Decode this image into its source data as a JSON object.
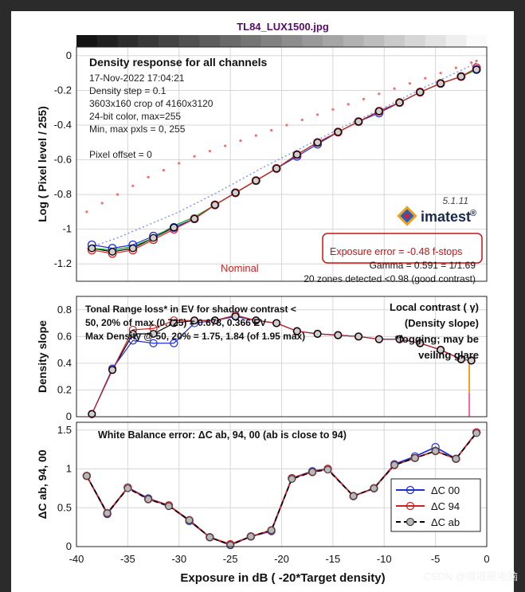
{
  "figure": {
    "title": "TL84_LUX1500.jpg",
    "xlabel": "Exposure in dB ( -20*Target density)",
    "watermark": "CSDN @哐哐砸电脑"
  },
  "chart_data": [
    {
      "type": "line",
      "panel": "density-response",
      "ylabel": "Log ( Pixel level / 255)",
      "xlim": [
        -40,
        0
      ],
      "ylim": [
        -1.3,
        0.05
      ],
      "yticks": [
        0,
        -0.2,
        -0.4,
        -0.6,
        -0.8,
        -1,
        -1.2
      ],
      "ytick_labels": [
        "0",
        "-0.2",
        "-0.4",
        "-0.6",
        "-0.8",
        "-1",
        "-1.2"
      ],
      "info_title": "Density response for all channels",
      "info_lines": [
        "17-Nov-2022 17:04:21",
        "Density step = 0.1",
        "3603x160 crop of 4160x3120",
        "24-bit color, max=255",
        "Min, max pxls = 0, 255",
        "",
        "Pixel offset = 0"
      ],
      "version": "5.1.11",
      "brand": "imatest",
      "brand_mark": "®",
      "nominal_label": "Nominal",
      "exposure_error": "Exposure error = -0.48 f-stops",
      "gamma": "Gamma = 0.591 = 1/1.69",
      "zones": "20 zones detected <0.98 (good contrast)",
      "x": [
        -38.5,
        -36.5,
        -34.5,
        -32.5,
        -30.5,
        -28.5,
        -26.5,
        -24.5,
        -22.5,
        -20.5,
        -18.5,
        -16.5,
        -14.5,
        -12.5,
        -10.5,
        -8.5,
        -6.5,
        -4.5,
        -2.5,
        -1.0
      ],
      "series": [
        {
          "name": "gray",
          "color": "#000000",
          "values": [
            -1.11,
            -1.13,
            -1.11,
            -1.05,
            -0.99,
            -0.94,
            -0.86,
            -0.79,
            -0.72,
            -0.65,
            -0.57,
            -0.5,
            -0.44,
            -0.38,
            -0.32,
            -0.27,
            -0.21,
            -0.16,
            -0.12,
            -0.08
          ]
        },
        {
          "name": "blue",
          "color": "#2030d0",
          "values": [
            -1.09,
            -1.11,
            -1.09,
            -1.04,
            -0.99,
            -0.94,
            -0.86,
            -0.79,
            -0.72,
            -0.65,
            -0.58,
            -0.51,
            -0.44,
            -0.38,
            -0.33,
            -0.27,
            -0.21,
            -0.16,
            -0.12,
            -0.08
          ]
        },
        {
          "name": "green",
          "color": "#10a010",
          "values": [
            -1.11,
            -1.12,
            -1.1,
            -1.05,
            -0.98,
            -0.93,
            -0.86,
            -0.79,
            -0.72,
            -0.65,
            -0.57,
            -0.5,
            -0.44,
            -0.38,
            -0.32,
            -0.27,
            -0.21,
            -0.16,
            -0.12,
            -0.08
          ]
        },
        {
          "name": "red",
          "color": "#d02020",
          "values": [
            -1.12,
            -1.14,
            -1.12,
            -1.06,
            -1.0,
            -0.94,
            -0.86,
            -0.79,
            -0.72,
            -0.65,
            -0.57,
            -0.5,
            -0.44,
            -0.38,
            -0.32,
            -0.27,
            -0.21,
            -0.16,
            -0.12,
            -0.07
          ]
        }
      ],
      "nominal_points": {
        "x": [
          -39.0,
          -37.5,
          -36.0,
          -34.5,
          -33.0,
          -31.5,
          -30.0,
          -28.5,
          -27.0,
          -25.5,
          -24.0,
          -22.5,
          -21.0,
          -19.5,
          -18.0,
          -16.5,
          -15.0,
          -13.5,
          -12.0,
          -10.5,
          -9.0,
          -7.5,
          -6.0,
          -4.5,
          -3.0,
          -1.5,
          -1.0
        ],
        "y": [
          -0.9,
          -0.85,
          -0.8,
          -0.75,
          -0.7,
          -0.66,
          -0.62,
          -0.58,
          -0.55,
          -0.52,
          -0.49,
          -0.46,
          -0.43,
          -0.4,
          -0.37,
          -0.34,
          -0.31,
          -0.28,
          -0.25,
          -0.22,
          -0.19,
          -0.16,
          -0.13,
          -0.1,
          -0.07,
          -0.04,
          -0.03
        ]
      },
      "ideal_line": {
        "x": [
          -39,
          -36,
          -34,
          -30,
          -26,
          -22,
          -18,
          -14,
          -10,
          -6,
          -2,
          -1
        ],
        "y": [
          -1.11,
          -1.05,
          -1.0,
          -0.9,
          -0.78,
          -0.65,
          -0.53,
          -0.41,
          -0.3,
          -0.18,
          -0.07,
          -0.04
        ]
      }
    },
    {
      "type": "line",
      "panel": "density-slope",
      "ylabel": "Density slope",
      "xlim": [
        -40,
        0
      ],
      "ylim": [
        0,
        0.9
      ],
      "yticks": [
        0,
        0.2,
        0.4,
        0.6,
        0.8
      ],
      "ytick_labels": [
        "0",
        "0.2",
        "0.4",
        "0.6",
        "0.8"
      ],
      "annot_lines": [
        "Tonal Range loss* in EV for shadow contrast <",
        "50, 20% of max (0.725) = 0.678, 0.366 EV",
        "Max Density @ 50, 20% = 1.75, 1.84  (of 1.95 max)"
      ],
      "right_lines": [
        "Local contrast ( γ)",
        "(Density slope)",
        "*fogging; may be",
        "veiling glare"
      ],
      "x": [
        -38.5,
        -36.5,
        -34.5,
        -32.5,
        -30.5,
        -28.5,
        -26.5,
        -24.5,
        -22.5,
        -20.5,
        -18.5,
        -16.5,
        -14.5,
        -12.5,
        -10.5,
        -8.5,
        -6.5,
        -4.5,
        -2.5,
        -1.5
      ],
      "series": [
        {
          "name": "gray",
          "color": "#000000",
          "values": [
            0.02,
            0.35,
            0.62,
            0.62,
            0.7,
            0.72,
            0.72,
            0.75,
            0.72,
            0.7,
            0.64,
            0.62,
            0.61,
            0.6,
            0.58,
            0.58,
            0.55,
            0.5,
            0.43,
            0.42
          ]
        },
        {
          "name": "blue",
          "color": "#2030d0",
          "values": [
            0.02,
            0.36,
            0.57,
            0.55,
            0.55,
            0.7,
            0.72,
            0.75,
            0.72,
            0.7,
            0.64,
            0.62,
            0.61,
            0.6,
            0.58,
            0.58,
            0.55,
            0.5,
            0.43,
            0.42
          ]
        },
        {
          "name": "red",
          "color": "#d02020",
          "values": [
            0.02,
            0.35,
            0.65,
            0.66,
            0.72,
            0.72,
            0.72,
            0.76,
            0.72,
            0.7,
            0.64,
            0.62,
            0.61,
            0.6,
            0.58,
            0.58,
            0.55,
            0.5,
            0.43,
            0.42
          ]
        }
      ]
    },
    {
      "type": "line",
      "panel": "white-balance",
      "ylabel": "ΔC ab, 94, 00",
      "title": "White Balance error:   ΔC ab, 94, 00 (ab is close to 94)",
      "xlim": [
        -40,
        0
      ],
      "ylim": [
        0,
        1.6
      ],
      "yticks": [
        0,
        0.5,
        1,
        1.5
      ],
      "ytick_labels": [
        "0",
        "0.5",
        "1",
        "1.5"
      ],
      "xticks": [
        -40,
        -35,
        -30,
        -25,
        -20,
        -15,
        -10,
        -5,
        0
      ],
      "xtick_labels": [
        "-40",
        "-35",
        "-30",
        "-25",
        "-20",
        "-15",
        "-10",
        "-5",
        "0"
      ],
      "x": [
        -39.0,
        -37.0,
        -35.0,
        -33.0,
        -31.0,
        -29.0,
        -27.0,
        -25.0,
        -23.0,
        -21.0,
        -19.0,
        -17.0,
        -15.5,
        -13.0,
        -11.0,
        -9.0,
        -7.0,
        -5.0,
        -3.0,
        -1.0
      ],
      "series": [
        {
          "name": "ΔC 00",
          "color": "#2030d0",
          "values": [
            0.91,
            0.42,
            0.76,
            0.62,
            0.53,
            0.33,
            0.12,
            0.02,
            0.13,
            0.2,
            0.88,
            0.97,
            1.0,
            0.65,
            0.75,
            1.06,
            1.16,
            1.28,
            1.13,
            1.47
          ]
        },
        {
          "name": "ΔC 94",
          "color": "#d02020",
          "values": [
            0.91,
            0.43,
            0.76,
            0.61,
            0.53,
            0.34,
            0.12,
            0.03,
            0.13,
            0.21,
            0.88,
            0.96,
            1.0,
            0.65,
            0.75,
            1.05,
            1.14,
            1.23,
            1.13,
            1.47
          ]
        },
        {
          "name": "ΔC ab",
          "color": "#000000",
          "values": [
            0.91,
            0.43,
            0.75,
            0.61,
            0.52,
            0.34,
            0.12,
            0.02,
            0.13,
            0.21,
            0.87,
            0.96,
            0.99,
            0.65,
            0.75,
            1.05,
            1.14,
            1.23,
            1.13,
            1.46
          ]
        }
      ],
      "legend": [
        "ΔC 00",
        "ΔC 94",
        "ΔC ab"
      ]
    }
  ]
}
